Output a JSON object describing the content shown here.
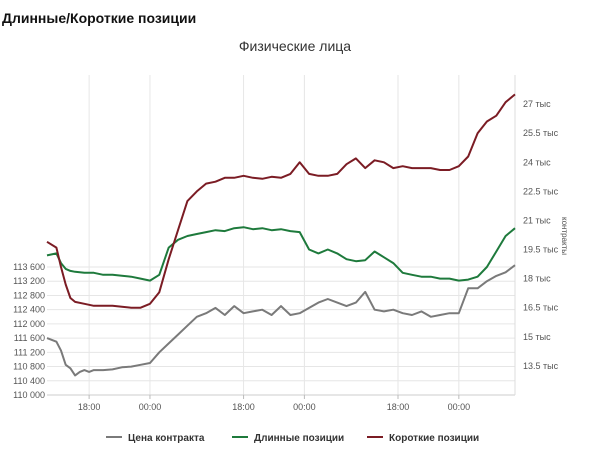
{
  "page": {
    "heading": "Длинные/Короткие позиции"
  },
  "chart_data": {
    "type": "line",
    "title": "Физические лица",
    "xlabel": "",
    "ylabel": "",
    "y2label": "контракты",
    "x_ticks": [
      {
        "label": "18:00",
        "x": 0.09
      },
      {
        "label": "00:00",
        "x": 0.22
      },
      {
        "label": "18:00",
        "x": 0.42
      },
      {
        "label": "00:00",
        "x": 0.55
      },
      {
        "label": "18:00",
        "x": 0.75
      },
      {
        "label": "00:00",
        "x": 0.88
      }
    ],
    "xlim": [
      0,
      1
    ],
    "ylim": [
      110000,
      119000
    ],
    "y_ticks": [
      110000,
      110400,
      110800,
      111200,
      111600,
      112000,
      112400,
      112800,
      113200,
      113600
    ],
    "y_tick_labels": [
      "110 000",
      "110 400",
      "110 800",
      "111 200",
      "111 600",
      "112 000",
      "112 400",
      "112 800",
      "113 200",
      "113 600"
    ],
    "y2lim": [
      12000,
      28500
    ],
    "y2_ticks": [
      13500,
      15000,
      16500,
      18000,
      19500,
      21000,
      22500,
      24000,
      25500,
      27000
    ],
    "y2_tick_labels": [
      "13.5 тыс",
      "15 тыс",
      "16.5 тыс",
      "18 тыс",
      "19.5 тыс",
      "21 тыс",
      "22.5 тыс",
      "24 тыс",
      "25.5 тыс",
      "27 тыс"
    ],
    "grid": true,
    "legend_position": "bottom",
    "series": [
      {
        "name": "Цена контракта",
        "axis": "left",
        "color": "#7a7a7a",
        "x": [
          0.0,
          0.02,
          0.03,
          0.04,
          0.05,
          0.06,
          0.07,
          0.08,
          0.09,
          0.1,
          0.12,
          0.14,
          0.16,
          0.18,
          0.2,
          0.22,
          0.24,
          0.26,
          0.28,
          0.3,
          0.32,
          0.34,
          0.36,
          0.38,
          0.4,
          0.42,
          0.44,
          0.46,
          0.48,
          0.5,
          0.52,
          0.54,
          0.56,
          0.58,
          0.6,
          0.62,
          0.64,
          0.66,
          0.68,
          0.7,
          0.72,
          0.74,
          0.76,
          0.78,
          0.8,
          0.82,
          0.84,
          0.86,
          0.88,
          0.9,
          0.92,
          0.94,
          0.96,
          0.98,
          1.0
        ],
        "values": [
          111600,
          111500,
          111250,
          110850,
          110750,
          110550,
          110650,
          110700,
          110650,
          110700,
          110700,
          110720,
          110780,
          110800,
          110850,
          110900,
          111200,
          111450,
          111700,
          111950,
          112200,
          112300,
          112450,
          112250,
          112500,
          112300,
          112350,
          112400,
          112250,
          112500,
          112250,
          112300,
          112450,
          112600,
          112700,
          112600,
          112500,
          112600,
          112900,
          112400,
          112350,
          112400,
          112300,
          112250,
          112350,
          112200,
          112250,
          112300,
          112300,
          113000,
          113000,
          113200,
          113350,
          113450,
          113650
        ]
      },
      {
        "name": "Длинные позиции",
        "axis": "right",
        "color": "#1e7a3c",
        "x": [
          0.0,
          0.02,
          0.03,
          0.04,
          0.05,
          0.06,
          0.08,
          0.1,
          0.12,
          0.14,
          0.16,
          0.18,
          0.2,
          0.22,
          0.24,
          0.26,
          0.28,
          0.3,
          0.32,
          0.34,
          0.36,
          0.38,
          0.4,
          0.42,
          0.44,
          0.46,
          0.48,
          0.5,
          0.52,
          0.54,
          0.56,
          0.58,
          0.6,
          0.62,
          0.64,
          0.66,
          0.68,
          0.7,
          0.72,
          0.74,
          0.76,
          0.78,
          0.8,
          0.82,
          0.84,
          0.86,
          0.88,
          0.9,
          0.92,
          0.94,
          0.96,
          0.98,
          1.0
        ],
        "values": [
          19200,
          19300,
          18800,
          18500,
          18400,
          18350,
          18300,
          18300,
          18200,
          18200,
          18150,
          18100,
          18000,
          17900,
          18200,
          19600,
          20000,
          20200,
          20300,
          20400,
          20500,
          20450,
          20600,
          20650,
          20550,
          20600,
          20500,
          20550,
          20450,
          20400,
          19500,
          19300,
          19500,
          19300,
          19000,
          18900,
          18950,
          19400,
          19100,
          18800,
          18300,
          18200,
          18100,
          18100,
          18000,
          18000,
          17900,
          17950,
          18100,
          18600,
          19400,
          20200,
          20600
        ]
      },
      {
        "name": "Короткие позиции",
        "axis": "right",
        "color": "#7b1c24",
        "x": [
          0.0,
          0.02,
          0.03,
          0.04,
          0.05,
          0.06,
          0.08,
          0.1,
          0.12,
          0.14,
          0.16,
          0.18,
          0.2,
          0.22,
          0.24,
          0.26,
          0.28,
          0.3,
          0.32,
          0.34,
          0.36,
          0.38,
          0.4,
          0.42,
          0.44,
          0.46,
          0.48,
          0.5,
          0.52,
          0.54,
          0.56,
          0.58,
          0.6,
          0.62,
          0.64,
          0.66,
          0.68,
          0.7,
          0.72,
          0.74,
          0.76,
          0.78,
          0.8,
          0.82,
          0.84,
          0.86,
          0.88,
          0.9,
          0.92,
          0.94,
          0.96,
          0.98,
          1.0
        ],
        "values": [
          19900,
          19600,
          18600,
          17700,
          17000,
          16800,
          16700,
          16600,
          16600,
          16600,
          16550,
          16500,
          16500,
          16700,
          17300,
          19000,
          20500,
          22000,
          22500,
          22900,
          23000,
          23200,
          23200,
          23300,
          23200,
          23150,
          23250,
          23200,
          23400,
          24000,
          23400,
          23300,
          23300,
          23400,
          23900,
          24200,
          23700,
          24100,
          24000,
          23700,
          23800,
          23700,
          23700,
          23700,
          23600,
          23600,
          23800,
          24300,
          25500,
          26100,
          26400,
          27100,
          27500
        ]
      }
    ]
  }
}
